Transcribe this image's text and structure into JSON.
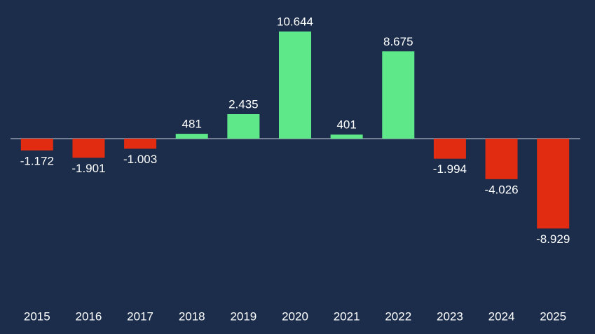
{
  "chart_data": {
    "type": "bar",
    "categories": [
      "2015",
      "2016",
      "2017",
      "2018",
      "2019",
      "2020",
      "2021",
      "2022",
      "2023",
      "2024",
      "2025"
    ],
    "values": [
      -1172,
      -1901,
      -1003,
      481,
      2435,
      10644,
      401,
      8675,
      -1994,
      -4026,
      -8929
    ],
    "value_labels": [
      "-1.172",
      "-1.901",
      "-1.003",
      "481",
      "2.435",
      "10.644",
      "401",
      "8.675",
      "-1.994",
      "-4.026",
      "-8.929"
    ],
    "positive_color": "#5ee88a",
    "negative_color": "#e12c12"
  }
}
